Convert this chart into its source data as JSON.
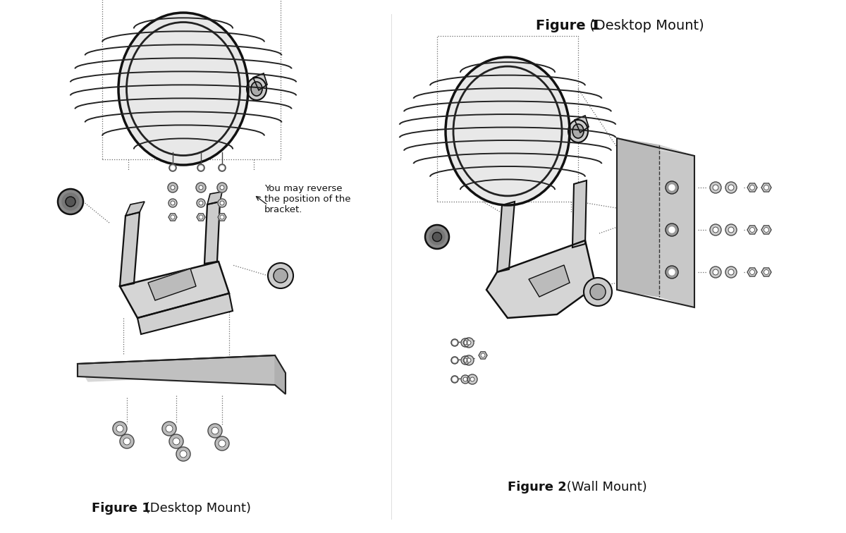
{
  "bg_color": "#ffffff",
  "fig_width": 12.0,
  "fig_height": 7.56,
  "title_left_bold": "Figure 1",
  "title_left_normal": " (Desktop Mount)",
  "title_right_top_bold": "Figure 1",
  "title_right_top_normal": " (Desktop Mount)",
  "title_right_bottom_bold": "Figure 2",
  "title_right_bottom_normal": " (Wall Mount)",
  "note_text": "You may reverse\nthe position of the\nbracket.",
  "line_color": "#444444",
  "part_fill_light": "#e8e8e8",
  "part_fill_mid": "#cccccc",
  "part_fill_dark": "#aaaaaa",
  "plate_fill": "#c8c8c8",
  "dashed_color": "#666666",
  "text_color": "#111111"
}
